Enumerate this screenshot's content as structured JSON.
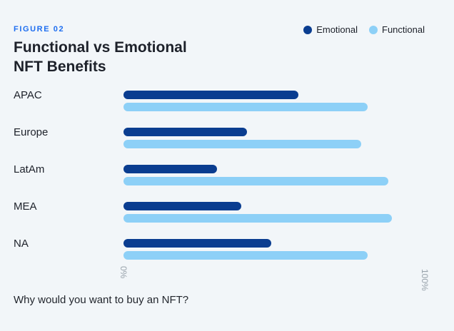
{
  "header": {
    "figure_label": "FIGURE 02",
    "title_line1": "Functional vs Emotional",
    "title_line2": "NFT Benefits"
  },
  "legend": {
    "items": [
      {
        "label": "Emotional",
        "color": "#0A3D90"
      },
      {
        "label": "Functional",
        "color": "#8DD0F7"
      }
    ]
  },
  "chart_data": {
    "type": "bar",
    "orientation": "horizontal",
    "title": "Functional vs Emotional NFT Benefits",
    "categories": [
      "APAC",
      "Europe",
      "LatAm",
      "MEA",
      "NA"
    ],
    "series": [
      {
        "name": "Emotional",
        "color": "#0A3D90",
        "values": [
          58,
          41,
          31,
          39,
          49
        ]
      },
      {
        "name": "Functional",
        "color": "#8DD0F7",
        "values": [
          81,
          79,
          88,
          89,
          81
        ]
      }
    ],
    "x_axis": {
      "min": 0,
      "max": 100,
      "min_label": "0%",
      "max_label": "100%"
    },
    "grid": false,
    "legend_position": "top-right"
  },
  "footer": {
    "caption": "Why would you want to buy an NFT?"
  },
  "colors": {
    "background": "#F2F6F9",
    "accent_blue": "#1E6EF0",
    "text_dark": "#1D212A",
    "axis_gray": "#98A2AB"
  }
}
